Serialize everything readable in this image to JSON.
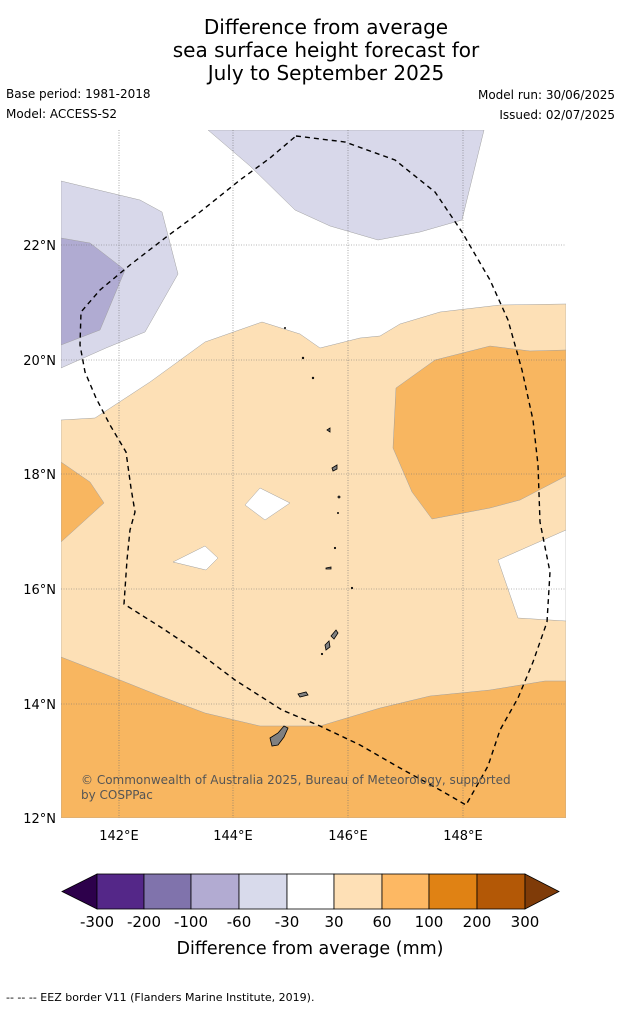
{
  "title": {
    "line1": "Difference from average",
    "line2": "sea surface height forecast for",
    "line3": "July to September 2025"
  },
  "meta": {
    "base_period": "Base period: 1981-2018",
    "model": "Model: ACCESS-S2",
    "model_run": "Model run: 30/06/2025",
    "issued": "Issued: 02/07/2025"
  },
  "map": {
    "lat_labels": [
      "22°N",
      "20°N",
      "18°N",
      "16°N",
      "14°N",
      "12°N"
    ],
    "lon_labels": [
      "142°E",
      "144°E",
      "146°E",
      "148°E"
    ],
    "copyright_line1": "© Commonwealth of Australia 2025, Bureau of Meteorology, supported",
    "copyright_line2": "by COSPPac",
    "colors": {
      "neg_60_30": "#d8d8ea",
      "neg_100_60": "#b0abd2",
      "pos_30_60": "#fde0b6",
      "pos_60_100": "#f8b660",
      "land": "#808080"
    }
  },
  "colorbar": {
    "ticks": [
      "-300",
      "-200",
      "-100",
      "-60",
      "-30",
      "30",
      "60",
      "100",
      "200",
      "300"
    ],
    "label": "Difference from average (mm)",
    "colors": [
      "#2d004b",
      "#542788",
      "#8073ac",
      "#b2abd2",
      "#d8daeb",
      "#ffffff",
      "#fee0b6",
      "#fdb863",
      "#e08214",
      "#b35806",
      "#7f3b08"
    ]
  },
  "footer": {
    "legend_text": "--  --  -- EEZ border V11 (Flanders Marine Institute, 2019)."
  }
}
